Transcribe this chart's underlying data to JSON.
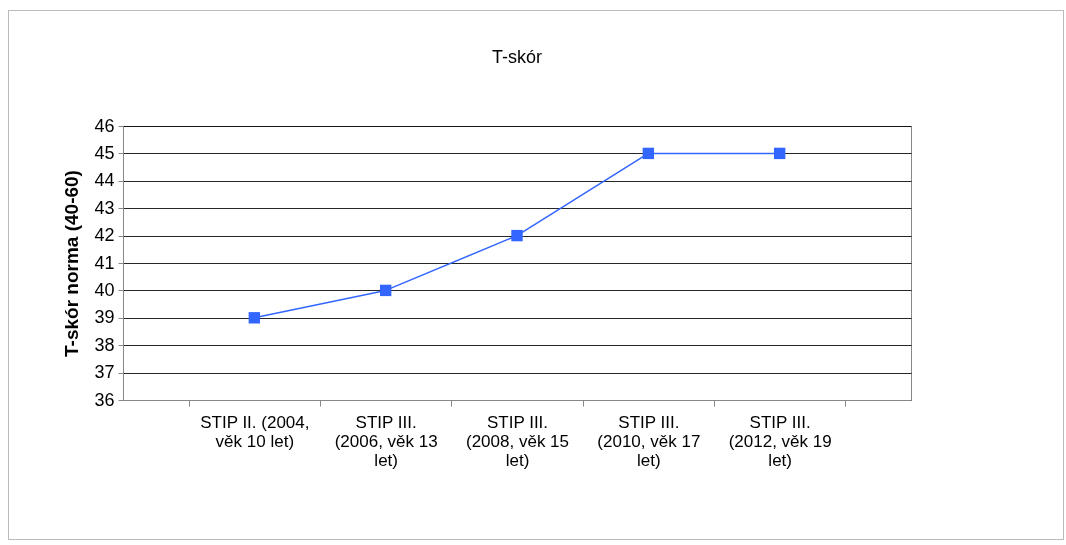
{
  "chart_data": {
    "type": "line",
    "title": "T-skór",
    "ylabel": "T-skór norma (40-60)",
    "categories": [
      "STIP II. (2004, věk 10 let)",
      "STIP III. (2006, věk 13 let)",
      "STIP III. (2008, věk 15 let)",
      "STIP III. (2010, věk 17 let)",
      "STIP III. (2012, věk 19 let)"
    ],
    "series": [
      {
        "color": "#3366ff",
        "values": [
          39,
          40,
          42,
          45,
          45
        ]
      }
    ],
    "ylim": [
      36,
      46
    ],
    "yticks": [
      36,
      37,
      38,
      39,
      40,
      41,
      42,
      43,
      44,
      45,
      46
    ],
    "grid": "y",
    "marker": "square",
    "line_style": "solid",
    "legend": false
  }
}
